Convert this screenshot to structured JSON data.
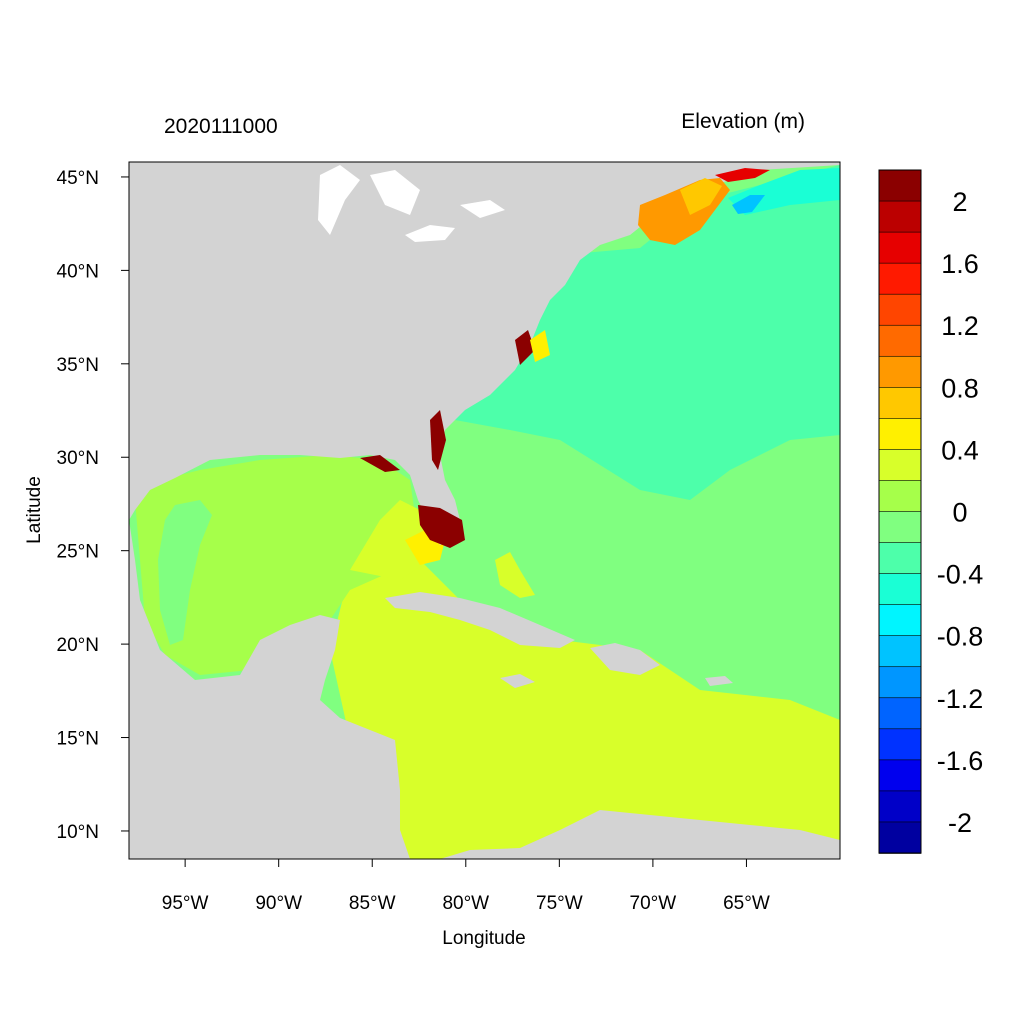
{
  "left_title": "2020111000",
  "right_title": "Elevation (m)",
  "xlabel": "Longitude",
  "ylabel": "Latitude",
  "lon_range": [
    -98,
    -60
  ],
  "lat_range": [
    8.5,
    45.8
  ],
  "lon_ticks": [
    {
      "value": -95,
      "label": "95°W"
    },
    {
      "value": -90,
      "label": "90°W"
    },
    {
      "value": -85,
      "label": "85°W"
    },
    {
      "value": -80,
      "label": "80°W"
    },
    {
      "value": -75,
      "label": "75°W"
    },
    {
      "value": -70,
      "label": "70°W"
    },
    {
      "value": -65,
      "label": "65°W"
    }
  ],
  "lat_ticks": [
    {
      "value": 45,
      "label": "45°N"
    },
    {
      "value": 40,
      "label": "40°N"
    },
    {
      "value": 35,
      "label": "35°N"
    },
    {
      "value": 30,
      "label": "30°N"
    },
    {
      "value": 25,
      "label": "25°N"
    },
    {
      "value": 20,
      "label": "20°N"
    },
    {
      "value": 15,
      "label": "15°N"
    },
    {
      "value": 10,
      "label": "10°N"
    }
  ],
  "colorbar": {
    "colors_top_to_bottom": [
      "#8b0000",
      "#bb0000",
      "#e60000",
      "#ff1a00",
      "#ff4500",
      "#ff6a00",
      "#ff9900",
      "#ffc800",
      "#fff000",
      "#d8ff2a",
      "#a6ff4a",
      "#80ff80",
      "#4dffaa",
      "#1affd5",
      "#00f5ff",
      "#00c3ff",
      "#0096ff",
      "#0064ff",
      "#0032ff",
      "#0000ee",
      "#0000c8",
      "#0000a0"
    ],
    "labels": [
      "2",
      "1.6",
      "1.2",
      "0.8",
      "0.4",
      "0",
      "-0.4",
      "-0.8",
      "-1.2",
      "-1.6",
      "-2"
    ]
  },
  "colors": {
    "land": "#d3d3d3",
    "water_dark": "#ffffff",
    "gulf": "#a6ff4a",
    "caribbean": "#d8ff2a",
    "atlantic_south": "#80ff80",
    "atlantic_north": "#4dffaa",
    "gulf_of_maine_high": "#ff9900",
    "nova_scotia_low": "#1affd5",
    "florida_high": "#8b0000",
    "florida_bay": "#fff000"
  }
}
